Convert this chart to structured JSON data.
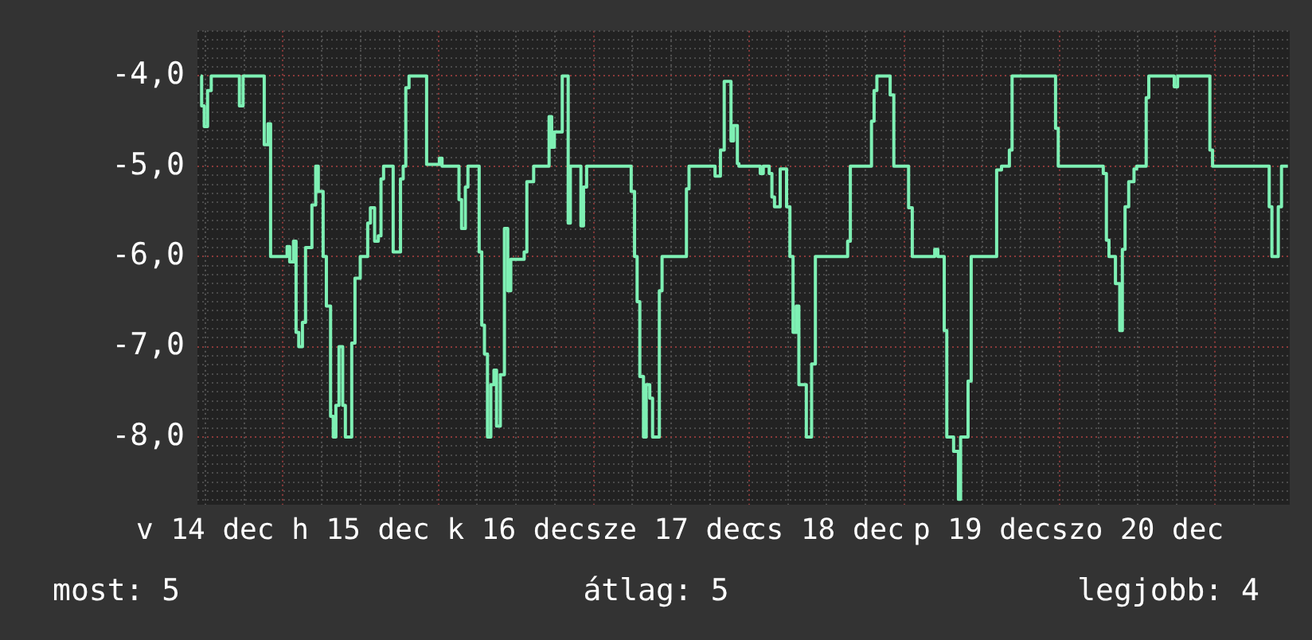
{
  "chart_data": {
    "type": "step",
    "color": "#7ef0b4",
    "x": [
      "--12-14T11:18",
      "--12-14T11:27",
      "--12-14T11:51",
      "--12-14T12:22",
      "--12-14T12:56",
      "--12-14T17:17",
      "--12-14T17:51",
      "--12-14T21:07",
      "--12-14T21:42",
      "--12-14T22:06",
      "--12-15T00:39",
      "--12-15T01:03",
      "--12-15T01:38",
      "--12-15T02:02",
      "--12-15T02:27",
      "--12-15T03:01",
      "--12-15T03:30",
      "--12-15T04:29",
      "--12-15T05:04",
      "--12-15T05:28",
      "--12-15T06:13",
      "--12-15T06:43",
      "--12-15T07:22",
      "--12-15T07:47",
      "--12-15T08:11",
      "--12-15T08:40",
      "--12-15T09:14",
      "--12-15T09:39",
      "--12-15T10:38",
      "--12-15T11:08",
      "--12-15T11:57",
      "--12-15T13:06",
      "--12-15T13:31",
      "--12-15T14:10",
      "--12-15T14:44",
      "--12-15T15:09",
      "--12-15T15:33",
      "--12-15T17:02",
      "--12-15T18:10",
      "--12-15T18:35",
      "--12-15T18:59",
      "--12-15T19:29",
      "--12-15T22:12",
      "--12-16T00:10",
      "--12-16T00:35",
      "--12-16T03:12",
      "--12-16T03:36",
      "--12-16T04:11",
      "--12-16T04:35",
      "--12-16T06:19",
      "--12-16T06:43",
      "--12-16T07:08",
      "--12-16T07:36",
      "--12-16T08:07",
      "--12-16T08:36",
      "--12-16T09:00",
      "--12-16T09:35",
      "--12-16T10:13",
      "--12-16T10:44",
      "--12-16T11:12",
      "--12-16T13:16",
      "--12-16T13:41",
      "--12-16T14:44",
      "--12-16T17:07",
      "--12-16T17:31",
      "--12-16T17:56",
      "--12-16T19:09",
      "--12-16T20:04",
      "--12-16T20:24",
      "--12-16T22:02",
      "--12-16T22:26",
      "--12-16T22:55",
      "--12-17T05:48",
      "--12-17T06:19",
      "--12-17T06:43",
      "--12-17T07:08",
      "--12-17T07:42",
      "--12-17T08:07",
      "--12-17T08:40",
      "--12-17T09:06",
      "--12-17T10:09",
      "--12-17T10:34",
      "--12-17T14:20",
      "--12-17T14:44",
      "--12-17T18:45",
      "--12-17T19:35",
      "--12-17T20:10",
      "--12-17T21:13",
      "--12-17T21:37",
      "--12-17T22:12",
      "--12-17T22:26",
      "--12-18T01:44",
      "--12-18T02:12",
      "--12-18T03:07",
      "--12-18T03:32",
      "--12-18T03:56",
      "--12-18T04:49",
      "--12-18T05:48",
      "--12-18T06:19",
      "--12-18T06:48",
      "--12-18T07:18",
      "--12-18T07:42",
      "--12-18T08:51",
      "--12-18T09:40",
      "--12-18T10:15",
      "--12-18T15:14",
      "--12-18T15:39",
      "--12-18T18:55",
      "--12-18T19:19",
      "--12-18T19:45",
      "--12-18T21:48",
      "--12-18T22:22",
      "--12-19T00:39",
      "--12-19T01:13",
      "--12-19T04:41",
      "--12-19T05:10",
      "--12-19T06:09",
      "--12-19T06:33",
      "--12-19T07:36",
      "--12-19T08:21",
      "--12-19T08:41",
      "--12-19T09:50",
      "--12-19T10:19",
      "--12-19T14:15",
      "--12-19T15:00",
      "--12-19T16:13",
      "--12-19T16:38",
      "--12-19T23:21",
      "--12-19T23:46",
      "--12-20T06:43",
      "--12-20T07:12",
      "--12-20T07:36",
      "--12-20T08:36",
      "--12-20T09:16",
      "--12-20T09:40",
      "--12-20T10:05",
      "--12-20T10:39",
      "--12-20T11:28",
      "--12-20T11:53",
      "--12-20T13:21",
      "--12-20T13:45",
      "--12-20T17:41",
      "--12-20T18:12",
      "--12-20T23:11",
      "--12-20T23:36",
      "--12-21T08:21",
      "--12-21T08:46",
      "--12-21T09:45",
      "--12-21T10:15",
      "--12-21T11:14"
    ],
    "values": [
      -4.0,
      -4.33,
      -4.56,
      -4.16,
      -4.0,
      -4.33,
      -4.0,
      -4.76,
      -4.53,
      -6.0,
      -5.89,
      -6.06,
      -5.83,
      -6.84,
      -7.0,
      -6.73,
      -5.9,
      -5.43,
      -5.0,
      -5.28,
      -6.0,
      -6.55,
      -7.77,
      -8.0,
      -7.65,
      -7.0,
      -7.65,
      -8.0,
      -6.96,
      -6.24,
      -6.0,
      -5.63,
      -5.46,
      -5.83,
      -5.77,
      -5.14,
      -5.0,
      -5.95,
      -5.14,
      -5.0,
      -4.13,
      -4.0,
      -4.98,
      -4.91,
      -5.0,
      -5.37,
      -5.69,
      -5.23,
      -5.0,
      -5.95,
      -6.76,
      -7.08,
      -8.0,
      -7.42,
      -7.26,
      -7.88,
      -7.31,
      -5.69,
      -6.38,
      -6.03,
      -5.95,
      -5.17,
      -5.0,
      -4.45,
      -4.79,
      -4.62,
      -4.0,
      -5.63,
      -5.0,
      -5.66,
      -5.23,
      -5.0,
      -5.28,
      -6.0,
      -6.5,
      -7.33,
      -8.0,
      -7.42,
      -7.57,
      -8.0,
      -6.38,
      -6.0,
      -5.25,
      -5.0,
      -5.11,
      -4.82,
      -4.06,
      -4.72,
      -4.55,
      -4.97,
      -5.0,
      -5.08,
      -5.0,
      -5.08,
      -5.34,
      -5.45,
      -5.03,
      -5.45,
      -6.0,
      -6.84,
      -6.55,
      -7.42,
      -8.0,
      -7.19,
      -6.0,
      -5.83,
      -5.0,
      -4.5,
      -4.16,
      -4.0,
      -4.21,
      -5.0,
      -5.46,
      -6.0,
      -5.92,
      -6.0,
      -6.82,
      -8.0,
      -8.16,
      -8.69,
      -8.0,
      -7.38,
      -6.0,
      -5.04,
      -5.0,
      -4.82,
      -4.0,
      -4.58,
      -5.0,
      -5.08,
      -5.82,
      -6.0,
      -6.3,
      -6.82,
      -5.92,
      -5.45,
      -5.17,
      -5.03,
      -5.0,
      -4.24,
      -4.0,
      -4.12,
      -4.0,
      -4.82,
      -5.0,
      -5.45,
      -6.0,
      -5.45,
      -5.0,
      -5.0
    ],
    "xlim": [
      "--12-14T10:48",
      "--12-21T11:31"
    ],
    "xticks": [
      {
        "value": "--12-14T12:00",
        "label": "v 14 dec"
      },
      {
        "value": "--12-14T18:00",
        "label": null
      },
      {
        "value": "--12-15T00:00",
        "label": null
      },
      {
        "value": "--12-15T06:00",
        "label": null
      },
      {
        "value": "--12-15T12:00",
        "label": "h 15 dec"
      },
      {
        "value": "--12-15T18:00",
        "label": null
      },
      {
        "value": "--12-16T00:00",
        "label": null
      },
      {
        "value": "--12-16T06:00",
        "label": null
      },
      {
        "value": "--12-16T12:00",
        "label": "k 16 dec"
      },
      {
        "value": "--12-16T18:00",
        "label": null
      },
      {
        "value": "--12-17T00:00",
        "label": null
      },
      {
        "value": "--12-17T06:00",
        "label": null
      },
      {
        "value": "--12-17T12:00",
        "label": "sze 17 dec"
      },
      {
        "value": "--12-17T18:00",
        "label": null
      },
      {
        "value": "--12-18T00:00",
        "label": null
      },
      {
        "value": "--12-18T06:00",
        "label": null
      },
      {
        "value": "--12-18T12:00",
        "label": "cs 18 dec"
      },
      {
        "value": "--12-18T18:00",
        "label": null
      },
      {
        "value": "--12-19T00:00",
        "label": null
      },
      {
        "value": "--12-19T06:00",
        "label": null
      },
      {
        "value": "--12-19T12:00",
        "label": "p 19 dec"
      },
      {
        "value": "--12-19T18:00",
        "label": null
      },
      {
        "value": "--12-20T00:00",
        "label": null
      },
      {
        "value": "--12-20T06:00",
        "label": null
      },
      {
        "value": "--12-20T12:00",
        "label": "szo 20 dec"
      },
      {
        "value": "--12-20T18:00",
        "label": null
      },
      {
        "value": "--12-21T00:00",
        "label": null
      },
      {
        "value": "--12-21T06:00",
        "label": null
      }
    ],
    "ylim": [
      -8.75,
      -3.5
    ],
    "yticks": [
      {
        "value": -3.5,
        "label": null
      },
      {
        "value": -3.6,
        "label": null
      },
      {
        "value": -3.7,
        "label": null
      },
      {
        "value": -3.8,
        "label": null
      },
      {
        "value": -3.9,
        "label": null
      },
      {
        "value": -4,
        "label": "-4,0"
      },
      {
        "value": -4.1,
        "label": null
      },
      {
        "value": -4.2,
        "label": null
      },
      {
        "value": -4.3,
        "label": null
      },
      {
        "value": -4.4,
        "label": null
      },
      {
        "value": -4.5,
        "label": null
      },
      {
        "value": -4.6,
        "label": null
      },
      {
        "value": -4.7,
        "label": null
      },
      {
        "value": -4.8,
        "label": null
      },
      {
        "value": -4.9,
        "label": null
      },
      {
        "value": -5,
        "label": "-5,0"
      },
      {
        "value": -5.1,
        "label": null
      },
      {
        "value": -5.2,
        "label": null
      },
      {
        "value": -5.3,
        "label": null
      },
      {
        "value": -5.4,
        "label": null
      },
      {
        "value": -5.5,
        "label": null
      },
      {
        "value": -5.6,
        "label": null
      },
      {
        "value": -5.7,
        "label": null
      },
      {
        "value": -5.8,
        "label": null
      },
      {
        "value": -5.9,
        "label": null
      },
      {
        "value": -6,
        "label": "-6,0"
      },
      {
        "value": -6.1,
        "label": null
      },
      {
        "value": -6.2,
        "label": null
      },
      {
        "value": -6.3,
        "label": null
      },
      {
        "value": -6.4,
        "label": null
      },
      {
        "value": -6.5,
        "label": null
      },
      {
        "value": -6.6,
        "label": null
      },
      {
        "value": -6.7,
        "label": null
      },
      {
        "value": -6.8,
        "label": null
      },
      {
        "value": -6.9,
        "label": null
      },
      {
        "value": -7,
        "label": "-7,0"
      },
      {
        "value": -7.1,
        "label": null
      },
      {
        "value": -7.2,
        "label": null
      },
      {
        "value": -7.3,
        "label": null
      },
      {
        "value": -7.4,
        "label": null
      },
      {
        "value": -7.5,
        "label": null
      },
      {
        "value": -7.6,
        "label": null
      },
      {
        "value": -7.7,
        "label": null
      },
      {
        "value": -7.8,
        "label": null
      },
      {
        "value": -7.9,
        "label": null
      },
      {
        "value": -8,
        "label": "-8,0"
      },
      {
        "value": -8.1,
        "label": null
      },
      {
        "value": -8.2,
        "label": null
      },
      {
        "value": -8.3,
        "label": null
      },
      {
        "value": -8.4,
        "label": null
      },
      {
        "value": -8.5,
        "label": null
      },
      {
        "value": -8.6,
        "label": null
      },
      {
        "value": -8.7,
        "label": null
      }
    ],
    "grid": true,
    "legend": false,
    "marker": "none",
    "line_style": "solid",
    "annotations": [
      "most: 5",
      "átlag: 5",
      "legjobb: 4"
    ]
  }
}
